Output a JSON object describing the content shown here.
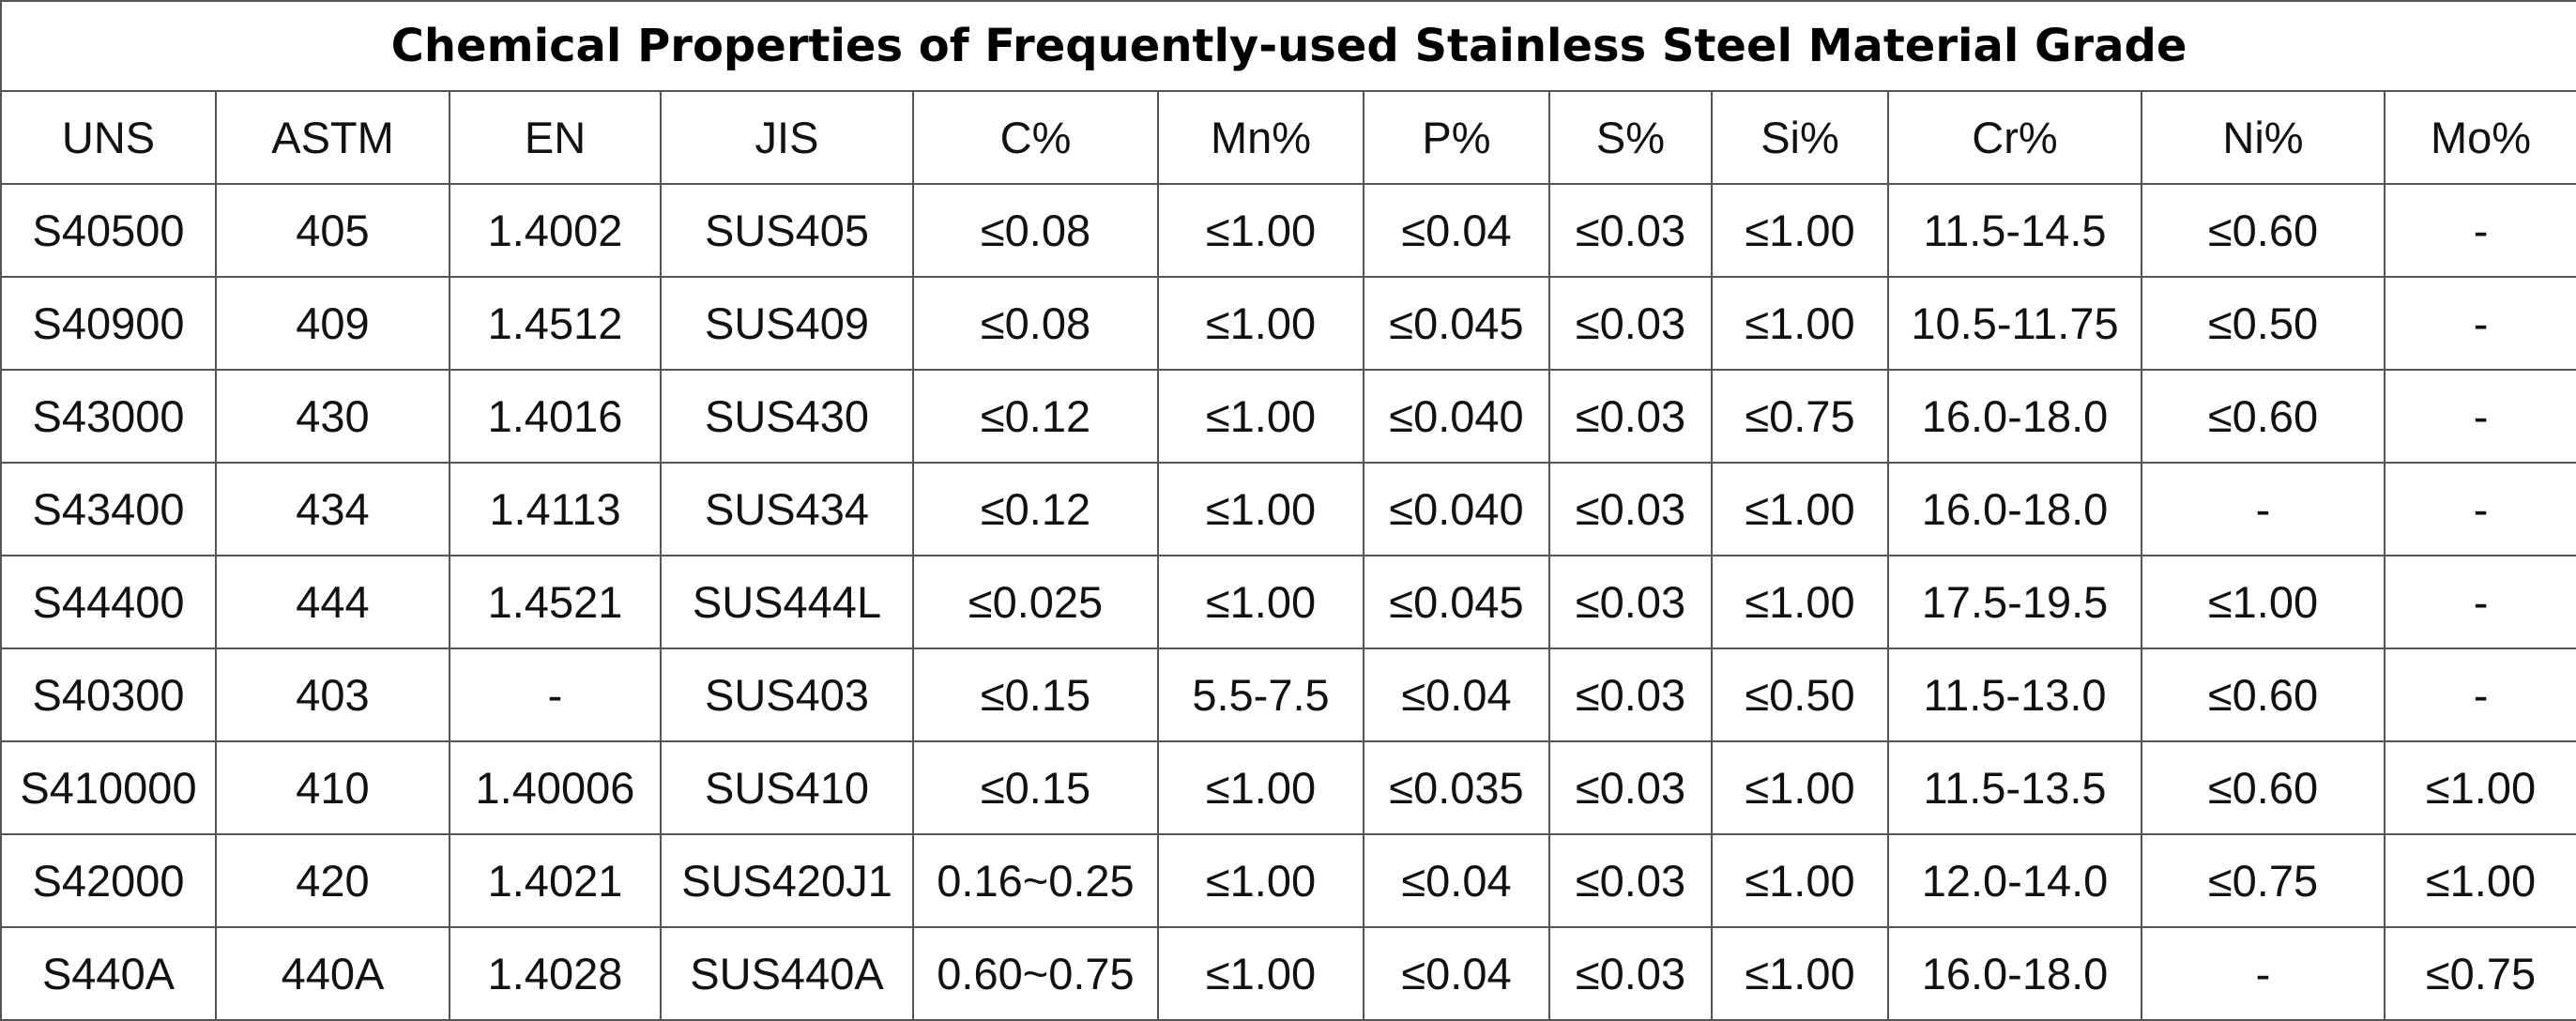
{
  "title": "Chemical Properties of Frequently-used Stainless Steel Material Grade",
  "columns": [
    "UNS",
    "ASTM",
    "EN",
    "JIS",
    "C%",
    "Mn%",
    "P%",
    "S%",
    "Si%",
    "Cr%",
    "Ni%",
    "Mo%"
  ],
  "rows": [
    [
      "S40500",
      "405",
      "1.4002",
      "SUS405",
      "≤0.08",
      "≤1.00",
      "≤0.04",
      "≤0.03",
      "≤1.00",
      "11.5-14.5",
      "≤0.60",
      "-"
    ],
    [
      "S40900",
      "409",
      "1.4512",
      "SUS409",
      "≤0.08",
      "≤1.00",
      "≤0.045",
      "≤0.03",
      "≤1.00",
      "10.5-11.75",
      "≤0.50",
      "-"
    ],
    [
      "S43000",
      "430",
      "1.4016",
      "SUS430",
      "≤0.12",
      "≤1.00",
      "≤0.040",
      "≤0.03",
      "≤0.75",
      "16.0-18.0",
      "≤0.60",
      "-"
    ],
    [
      "S43400",
      "434",
      "1.4113",
      "SUS434",
      "≤0.12",
      "≤1.00",
      "≤0.040",
      "≤0.03",
      "≤1.00",
      "16.0-18.0",
      "-",
      "-"
    ],
    [
      "S44400",
      "444",
      "1.4521",
      "SUS444L",
      "≤0.025",
      "≤1.00",
      "≤0.045",
      "≤0.03",
      "≤1.00",
      "17.5-19.5",
      "≤1.00",
      "-"
    ],
    [
      "S40300",
      "403",
      "-",
      "SUS403",
      "≤0.15",
      "5.5-7.5",
      "≤0.04",
      "≤0.03",
      "≤0.50",
      "11.5-13.0",
      "≤0.60",
      "-"
    ],
    [
      "S410000",
      "410",
      "1.40006",
      "SUS410",
      "≤0.15",
      "≤1.00",
      "≤0.035",
      "≤0.03",
      "≤1.00",
      "11.5-13.5",
      "≤0.60",
      "≤1.00"
    ],
    [
      "S42000",
      "420",
      "1.4021",
      "SUS420J1",
      "0.16~0.25",
      "≤1.00",
      "≤0.04",
      "≤0.03",
      "≤1.00",
      "12.0-14.0",
      "≤0.75",
      "≤1.00"
    ],
    [
      "S440A",
      "440A",
      "1.4028",
      "SUS440A",
      "0.60~0.75",
      "≤1.00",
      "≤0.04",
      "≤0.03",
      "≤1.00",
      "16.0-18.0",
      "-",
      "≤0.75"
    ]
  ]
}
